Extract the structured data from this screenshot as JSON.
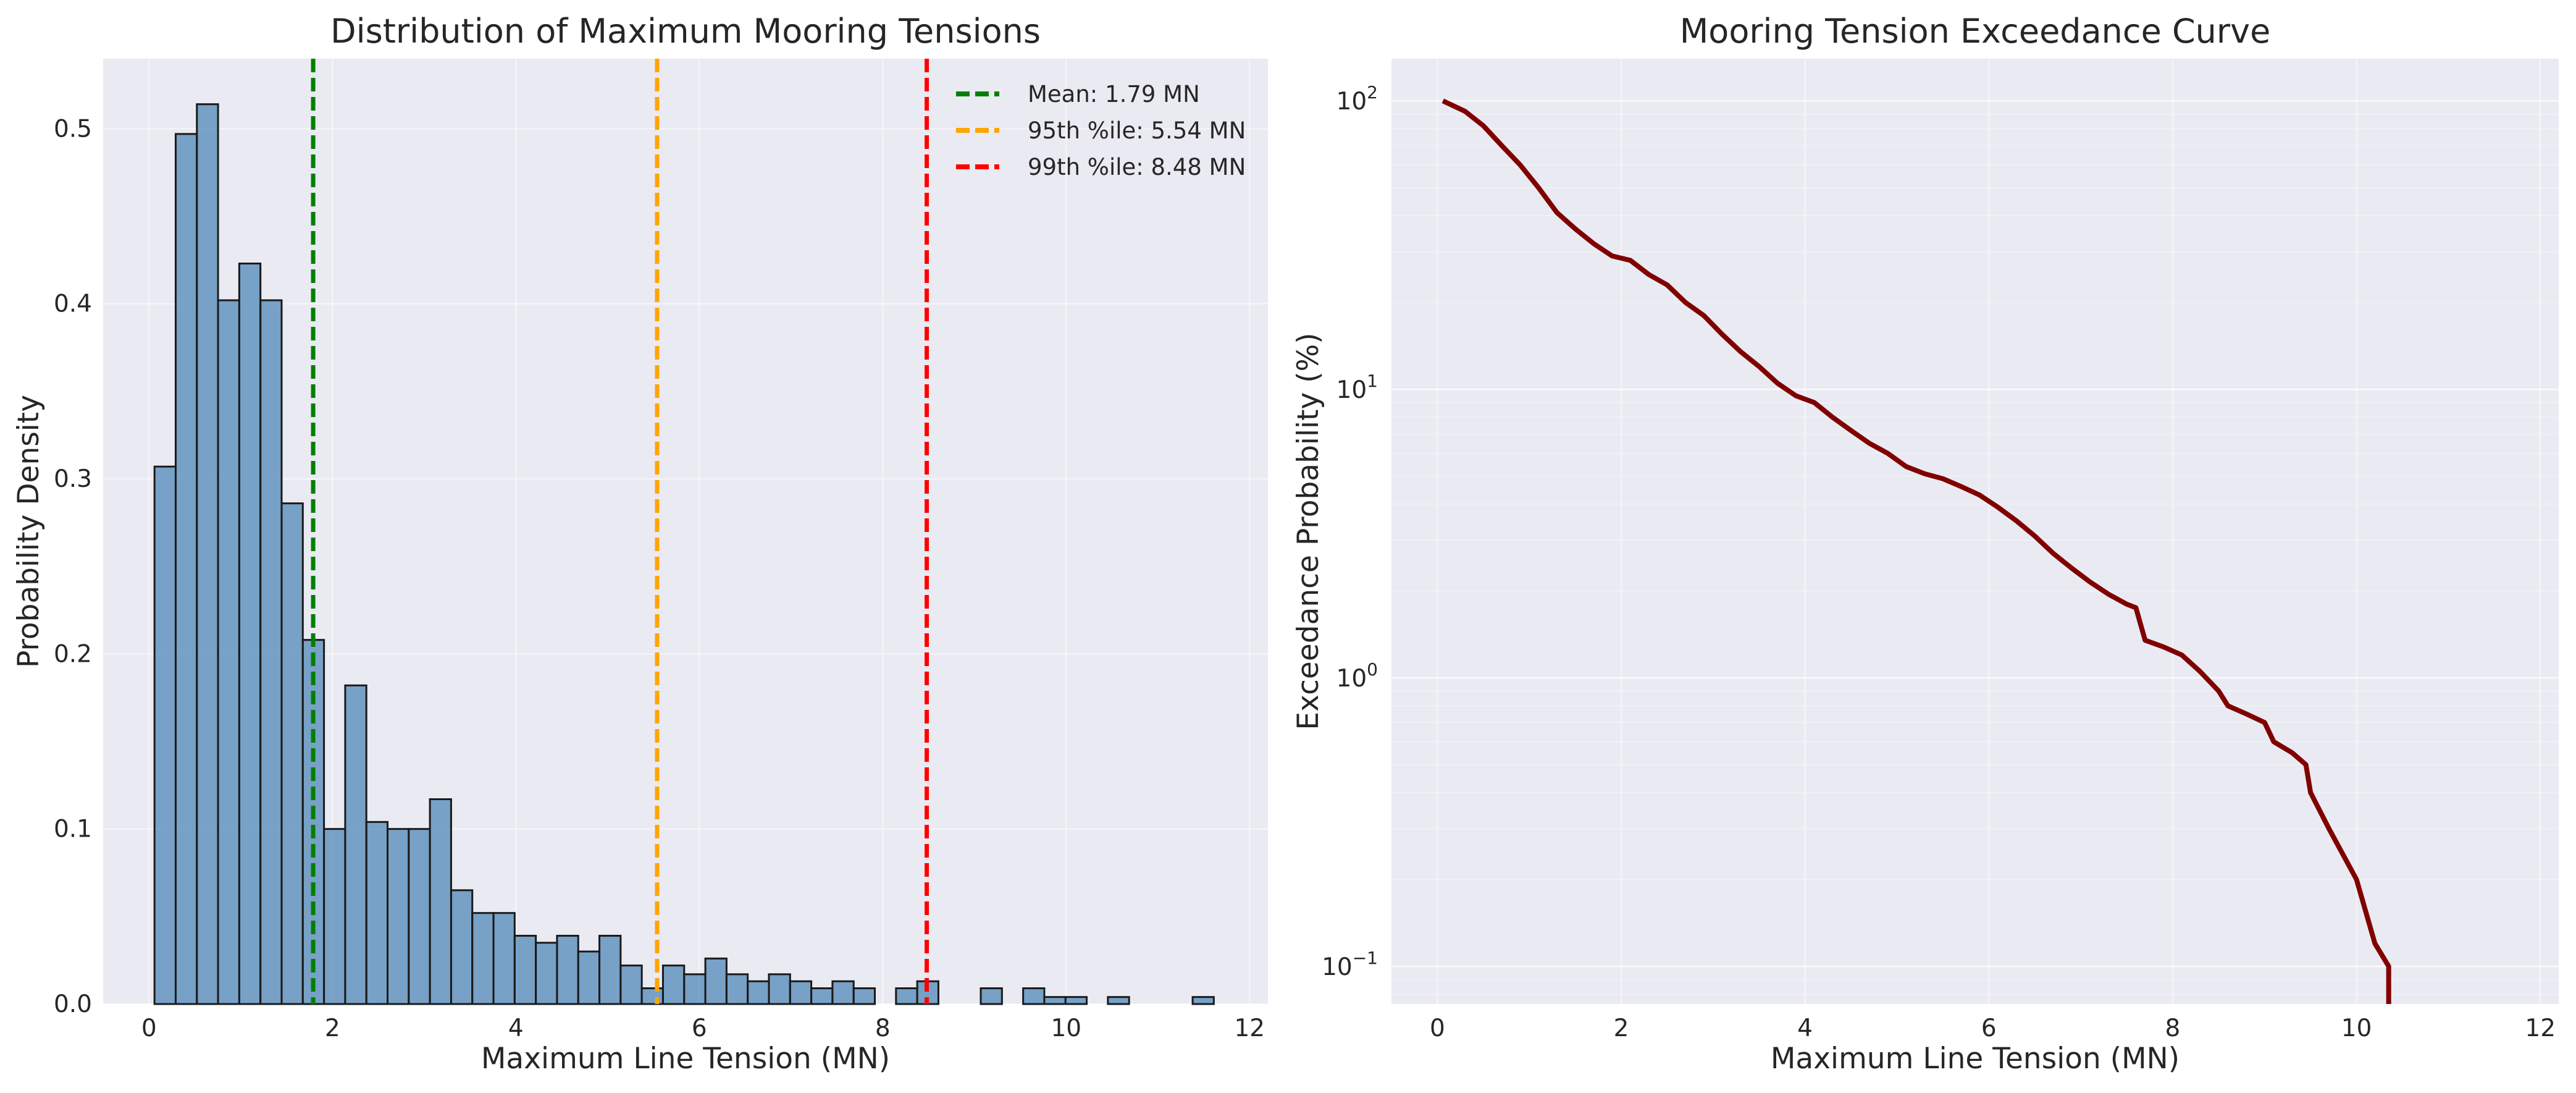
{
  "colors": {
    "plot_bg": "#eaeaf2",
    "grid": "#ffffff",
    "bar_fill": "#4682b4",
    "bar_edge": "#1a1a1a",
    "mean_line": "#008000",
    "p95_line": "#ffa500",
    "p99_line": "#ff0000",
    "curve": "#800000"
  },
  "chart_data": [
    {
      "type": "bar",
      "subtype": "histogram",
      "title": "Distribution of Maximum Mooring Tensions",
      "xlabel": "Maximum Line Tension (MN)",
      "ylabel": "Probability Density",
      "xlim": [
        -0.5,
        12.2
      ],
      "ylim": [
        0,
        0.54
      ],
      "xticks": [
        0,
        2,
        4,
        6,
        8,
        10,
        12
      ],
      "yticks": [
        0.0,
        0.1,
        0.2,
        0.3,
        0.4,
        0.5
      ],
      "xtick_labels": [
        "0",
        "2",
        "4",
        "6",
        "8",
        "10",
        "12"
      ],
      "ytick_labels": [
        "0.0",
        "0.1",
        "0.2",
        "0.3",
        "0.4",
        "0.5"
      ],
      "grid": true,
      "legend_position": "top-right",
      "bin_edges": [
        0.06,
        0.291,
        0.522,
        0.753,
        0.984,
        1.215,
        1.446,
        1.677,
        1.908,
        2.139,
        2.37,
        2.601,
        2.832,
        3.063,
        3.294,
        3.525,
        3.756,
        3.987,
        4.218,
        4.449,
        4.68,
        4.911,
        5.142,
        5.373,
        5.604,
        5.835,
        6.066,
        6.297,
        6.528,
        6.759,
        6.99,
        7.221,
        7.452,
        7.683,
        7.914,
        8.145,
        8.376,
        8.607,
        8.838,
        9.069,
        9.3,
        9.531,
        9.762,
        9.993,
        10.224,
        10.455,
        10.686,
        10.917,
        11.148,
        11.379,
        11.61
      ],
      "density": [
        0.307,
        0.497,
        0.514,
        0.402,
        0.423,
        0.402,
        0.286,
        0.208,
        0.1,
        0.182,
        0.104,
        0.1,
        0.1,
        0.117,
        0.065,
        0.052,
        0.052,
        0.039,
        0.035,
        0.039,
        0.03,
        0.039,
        0.022,
        0.009,
        0.022,
        0.017,
        0.026,
        0.017,
        0.013,
        0.017,
        0.013,
        0.009,
        0.013,
        0.009,
        0.0,
        0.009,
        0.013,
        0.0,
        0.0,
        0.009,
        0.0,
        0.009,
        0.004,
        0.004,
        0.0,
        0.004,
        0.0,
        0.0,
        0.0,
        0.004
      ],
      "vlines": [
        {
          "label": "Mean: 1.79 MN",
          "x": 1.79,
          "color": "#008000"
        },
        {
          "label": "95th %ile: 5.54 MN",
          "x": 5.54,
          "color": "#ffa500"
        },
        {
          "label": "99th %ile: 8.48 MN",
          "x": 8.48,
          "color": "#ff0000"
        }
      ]
    },
    {
      "type": "line",
      "title": "Mooring Tension Exceedance Curve",
      "xlabel": "Maximum Line Tension (MN)",
      "ylabel": "Exceedance Probability (%)",
      "yscale": "log",
      "xlim": [
        -0.5,
        12.2
      ],
      "ylim": [
        0.074,
        140
      ],
      "xticks": [
        0,
        2,
        4,
        6,
        8,
        10,
        12
      ],
      "xtick_labels": [
        "0",
        "2",
        "4",
        "6",
        "8",
        "10",
        "12"
      ],
      "yticks": [
        0.1,
        1,
        10,
        100
      ],
      "ytick_labels": [
        {
          "base": "10",
          "exp": "−1"
        },
        {
          "base": "10",
          "exp": "0"
        },
        {
          "base": "10",
          "exp": "1"
        },
        {
          "base": "10",
          "exp": "2"
        }
      ],
      "grid": true,
      "series": [
        {
          "color": "#800000",
          "x": [
            0.06,
            0.3,
            0.5,
            0.7,
            0.9,
            1.1,
            1.3,
            1.5,
            1.7,
            1.9,
            2.1,
            2.3,
            2.5,
            2.7,
            2.9,
            3.1,
            3.3,
            3.5,
            3.7,
            3.9,
            4.1,
            4.3,
            4.5,
            4.7,
            4.9,
            5.1,
            5.3,
            5.5,
            5.7,
            5.9,
            6.1,
            6.3,
            6.5,
            6.7,
            6.9,
            7.1,
            7.3,
            7.5,
            7.6,
            7.7,
            7.9,
            8.1,
            8.3,
            8.5,
            8.6,
            8.8,
            9.0,
            9.1,
            9.3,
            9.45,
            9.5,
            9.7,
            10.0,
            10.2,
            10.35,
            10.35
          ],
          "y": [
            100,
            92,
            82,
            70,
            60,
            50,
            41,
            36,
            32,
            29,
            28,
            25,
            23,
            20,
            18,
            15.5,
            13.5,
            12,
            10.5,
            9.5,
            9,
            8,
            7.2,
            6.5,
            6,
            5.4,
            5.1,
            4.9,
            4.6,
            4.3,
            3.9,
            3.5,
            3.1,
            2.7,
            2.4,
            2.15,
            1.95,
            1.8,
            1.75,
            1.35,
            1.28,
            1.2,
            1.05,
            0.9,
            0.8,
            0.75,
            0.7,
            0.6,
            0.55,
            0.5,
            0.4,
            0.3,
            0.2,
            0.12,
            0.1,
            0.06
          ]
        }
      ]
    }
  ]
}
